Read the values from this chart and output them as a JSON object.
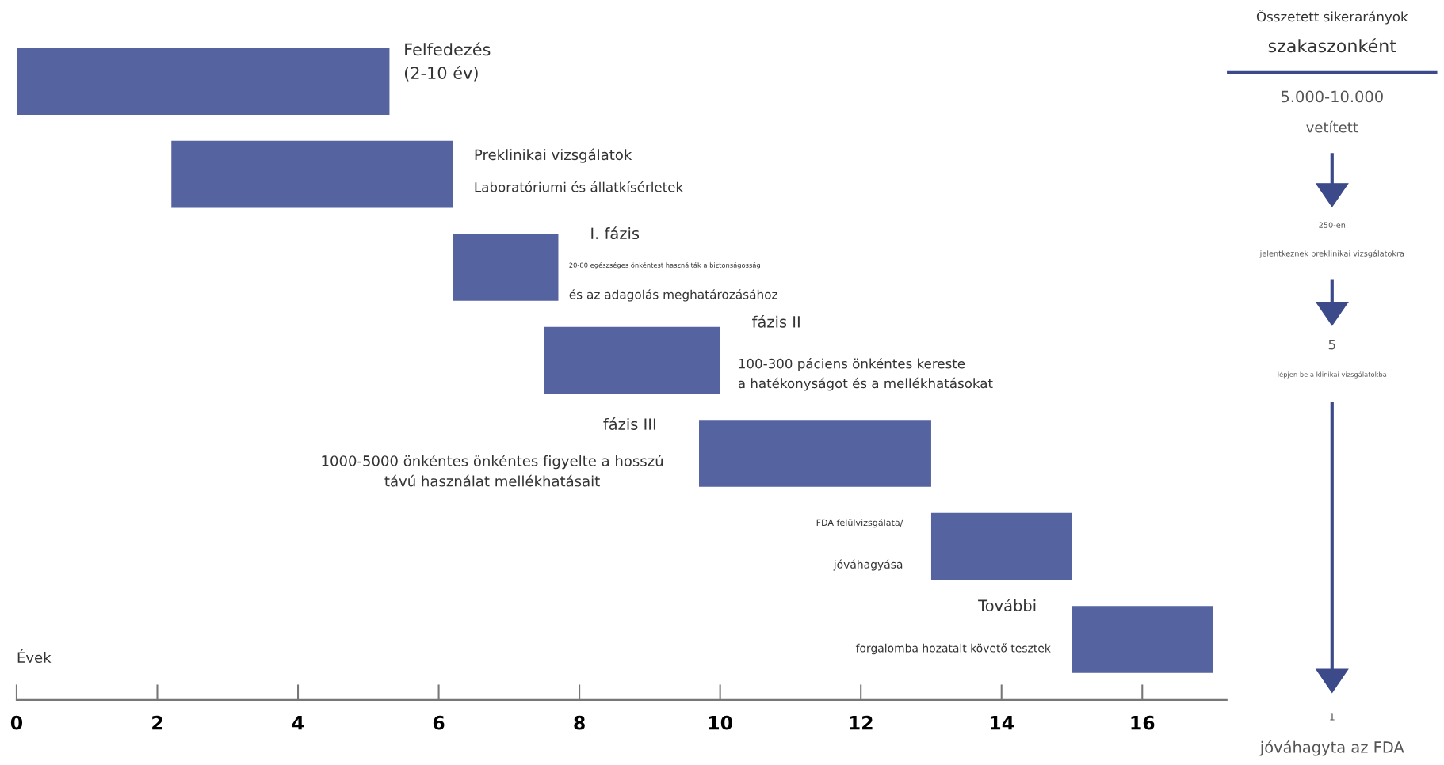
{
  "chart_data": [
    {
      "type": "bar",
      "orientation": "horizontal",
      "xlabel": "Évek",
      "categories": [
        null,
        null,
        null,
        null,
        null,
        null,
        null
      ],
      "base": [
        0,
        2.2,
        6.2,
        7.5,
        9.7,
        13.0,
        15.0
      ],
      "values": [
        5.3,
        4.0,
        1.5,
        2.5,
        3.3,
        2.0,
        2.0
      ],
      "color": "#5663a1",
      "xlim": [
        0,
        17.2
      ],
      "xticks": [
        0,
        2,
        4,
        6,
        8,
        10,
        12,
        14,
        16
      ],
      "grid": false,
      "legend": false,
      "annotations": [
        "Felfedezés\n(2-10 év)",
        "Preklinikai vizsgálatok",
        "Laboratóriumi és állatkísérletek",
        "I. fázis",
        "20-80 egészséges önkéntest használták a biztonságosság",
        "és az adagolás meghatározásához",
        "fázis II",
        "100-300 páciens önkéntes kereste\na hatékonyságot és a mellékhatásokat",
        "fázis III",
        "1000-5000 önkéntes önkéntes figyelte a hosszú\ntávú használat mellékhatásait",
        "FDA felülvizsgálata/",
        "jóváhagyása",
        "További",
        "forgalomba hozatalt követő tesztek"
      ]
    },
    {
      "type": "other",
      "title": "Összetett sikerarányok",
      "subtitle": "szakaszonként",
      "color": "#3d4a8a",
      "annotations": [
        "5.000-10.000",
        "vetített",
        "250-en",
        "jelentkeznek preklinikai vizsgálatokra",
        "5",
        "lépjen be a klinikai vizsgálatokba",
        "1",
        "jóváhagyta az FDA"
      ]
    }
  ]
}
